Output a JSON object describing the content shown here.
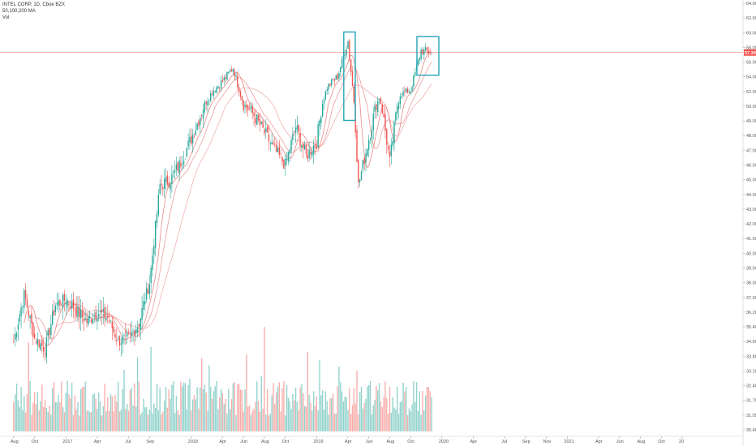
{
  "legend": {
    "symbol_line": "INTEL CORP, 1D, Cboe BZX",
    "ma_line": "50,100,200 MA",
    "vol_line": "Vol"
  },
  "colors": {
    "up": "#26a69a",
    "down": "#ef5350",
    "vol_up": "#80cbc4",
    "vol_down": "#f4a09c",
    "ma": "#e57373",
    "last_price_line": "#ef5350",
    "highlight_box": "#26a6b5",
    "axis_border": "#cccccc"
  },
  "chart_data": {
    "type": "candlestick",
    "symbol": "INTEL CORP",
    "interval": "1D",
    "exchange": "Cboe BZX",
    "indicators": [
      "50,100,200 MA",
      "Vol"
    ],
    "y_axis": {
      "range": [
        30.0,
        64.0
      ],
      "tick_labels": [
        "64.00",
        "62.00",
        "60.00",
        "58.00",
        "56.00",
        "54.00",
        "52.00",
        "50.00",
        "49.00",
        "48.00",
        "47.00",
        "46.00",
        "45.00",
        "44.00",
        "43.00",
        "42.00",
        "41.00",
        "40.00",
        "39.00",
        "38.00",
        "37.00",
        "36.20",
        "35.40",
        "34.60",
        "33.80",
        "33.10",
        "32.40",
        "31.70",
        "31.05",
        "30.40"
      ]
    },
    "x_axis": {
      "tick_labels": [
        "Aug",
        "Oct",
        "2017",
        "Apr",
        "Jul",
        "Sep",
        "2018",
        "Apr",
        "Jun",
        "Aug",
        "Oct",
        "2019",
        "Apr",
        "Jun",
        "Aug",
        "Oct",
        "2020",
        "Apr",
        "Jul",
        "Sep",
        "Nov",
        "2021",
        "Apr",
        "Jun",
        "Aug",
        "Oct",
        "20"
      ]
    },
    "last_price": "57.30",
    "price_path": [
      {
        "date": "2016-08",
        "close": 34.6
      },
      {
        "date": "2016-09",
        "close": 37.2
      },
      {
        "date": "2016-10",
        "close": 34.8
      },
      {
        "date": "2016-11",
        "close": 34.2
      },
      {
        "date": "2016-12",
        "close": 36.6
      },
      {
        "date": "2017-01",
        "close": 36.9
      },
      {
        "date": "2017-02",
        "close": 36.3
      },
      {
        "date": "2017-03",
        "close": 35.7
      },
      {
        "date": "2017-04",
        "close": 36.2
      },
      {
        "date": "2017-05",
        "close": 35.9
      },
      {
        "date": "2017-06",
        "close": 34.6
      },
      {
        "date": "2017-07",
        "close": 34.8
      },
      {
        "date": "2017-08",
        "close": 35.6
      },
      {
        "date": "2017-09",
        "close": 38.0
      },
      {
        "date": "2017-10",
        "close": 44.6
      },
      {
        "date": "2017-11",
        "close": 45.0
      },
      {
        "date": "2017-12",
        "close": 46.2
      },
      {
        "date": "2018-01",
        "close": 47.8
      },
      {
        "date": "2018-02",
        "close": 49.6
      },
      {
        "date": "2018-03",
        "close": 52.0
      },
      {
        "date": "2018-04",
        "close": 53.4
      },
      {
        "date": "2018-05",
        "close": 55.2
      },
      {
        "date": "2018-06",
        "close": 50.2
      },
      {
        "date": "2018-07",
        "close": 49.4
      },
      {
        "date": "2018-08",
        "close": 48.2
      },
      {
        "date": "2018-09",
        "close": 47.0
      },
      {
        "date": "2018-10",
        "close": 46.0
      },
      {
        "date": "2018-11",
        "close": 48.6
      },
      {
        "date": "2018-12",
        "close": 46.6
      },
      {
        "date": "2019-01",
        "close": 47.6
      },
      {
        "date": "2019-02",
        "close": 52.6
      },
      {
        "date": "2019-03",
        "close": 54.0
      },
      {
        "date": "2019-04",
        "close": 58.8
      },
      {
        "date": "2019-05",
        "close": 44.6
      },
      {
        "date": "2019-06",
        "close": 47.8
      },
      {
        "date": "2019-07",
        "close": 51.2
      },
      {
        "date": "2019-08",
        "close": 46.2
      },
      {
        "date": "2019-09",
        "close": 51.6
      },
      {
        "date": "2019-10",
        "close": 52.2
      },
      {
        "date": "2019-11",
        "close": 57.6
      },
      {
        "date": "2019-12",
        "close": 57.3
      }
    ],
    "highlights": [
      {
        "from": "2019-04",
        "to": "2019-04"
      },
      {
        "from": "2019-11",
        "to": "2019-12"
      }
    ]
  }
}
